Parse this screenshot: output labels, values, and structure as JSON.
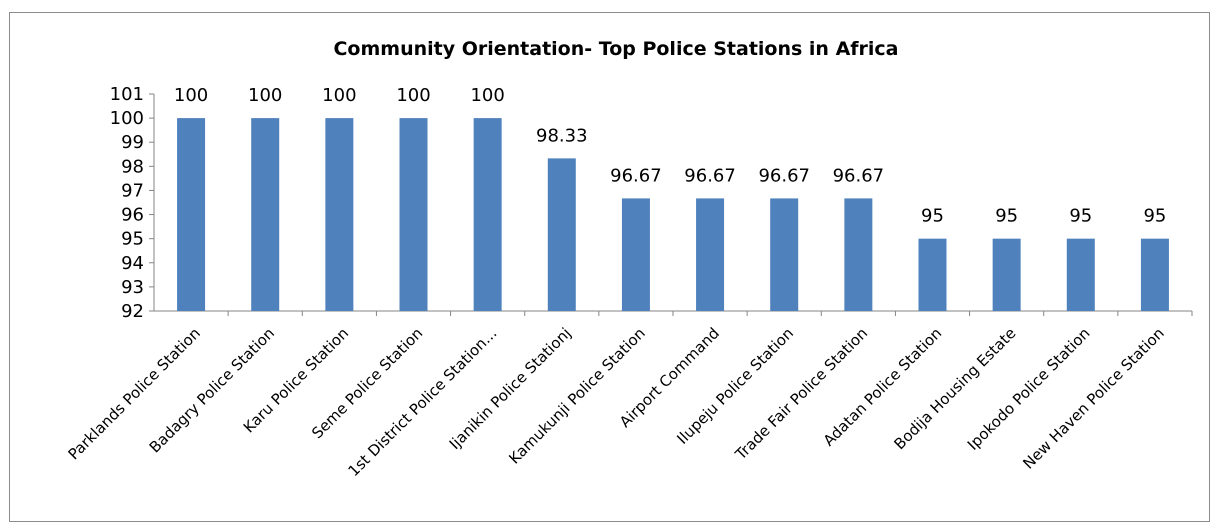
{
  "chart_data": {
    "type": "bar",
    "title": "Community Orientation- Top Police Stations in Africa",
    "xlabel": "",
    "ylabel": "",
    "ylim": [
      92,
      101
    ],
    "yticks": [
      92,
      93,
      94,
      95,
      96,
      97,
      98,
      99,
      100,
      101
    ],
    "categories": [
      "Parklands Police Station",
      "Badagry Police Station",
      "Karu Police Station",
      "Seme Police Station",
      "1st District Police Station...",
      "Ijanikin Police Stationj",
      "Kamukunji Police Station",
      "Airport Command",
      "Ilupeju Police Station",
      "Trade Fair Police Station",
      "Adatan Police Station",
      "Bodija Housing Estate",
      "Ipokodo Police Station",
      "New Haven Police Station"
    ],
    "values": [
      100,
      100,
      100,
      100,
      100,
      98.33,
      96.67,
      96.67,
      96.67,
      96.67,
      95,
      95,
      95,
      95
    ],
    "data_labels": [
      "100",
      "100",
      "100",
      "100",
      "100",
      "98.33",
      "96.67",
      "96.67",
      "96.67",
      "96.67",
      "95",
      "95",
      "95",
      "95"
    ],
    "bar_color": "#4f81bd",
    "grid": false,
    "legend": "none"
  }
}
